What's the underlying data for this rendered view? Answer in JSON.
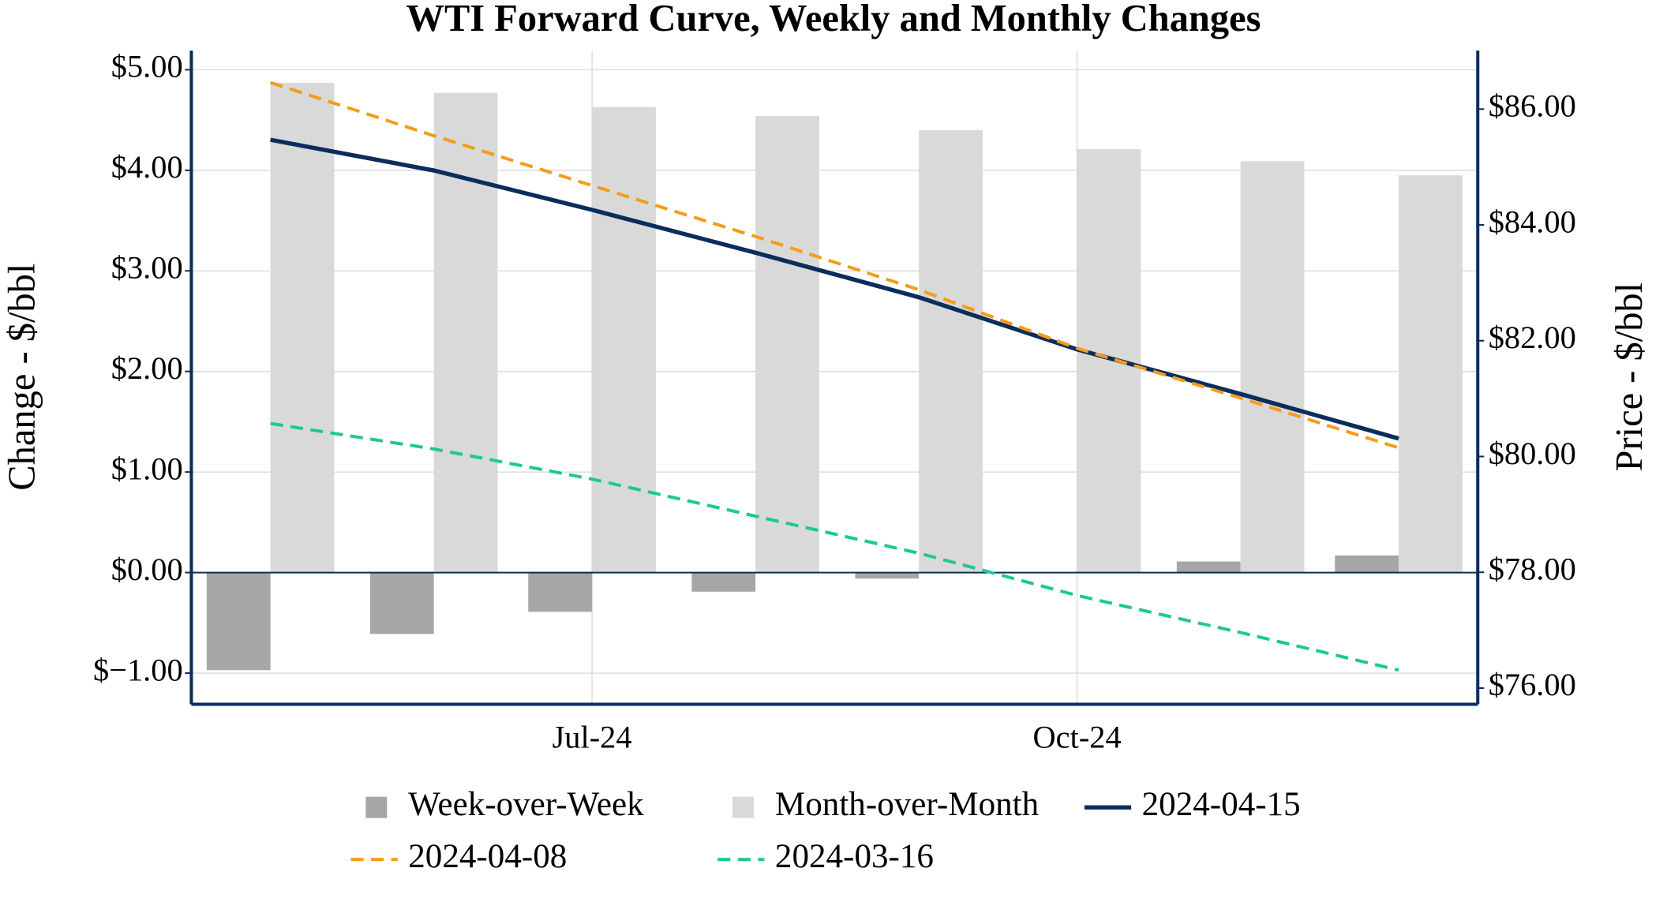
{
  "chart_data": {
    "type": "bar",
    "title": "WTI Forward Curve, Weekly and Monthly Changes",
    "y_label": "Change - $/bbl",
    "y2_label": "Price - $/bbl",
    "x": [
      "2024-05",
      "2024-06",
      "2024-07",
      "2024-08",
      "2024-09",
      "2024-10",
      "2024-11",
      "2024-12"
    ],
    "xlim": [
      "2024-04-16",
      "2024-12-16"
    ],
    "xticks": [
      {
        "value": "2024-07",
        "label": "Jul-24"
      },
      {
        "value": "2024-10",
        "label": "Oct-24"
      }
    ],
    "ylim": [
      -1.31,
      5.19
    ],
    "yticks": [
      {
        "value": -1,
        "label": "$−1.00"
      },
      {
        "value": 0,
        "label": "$0.00"
      },
      {
        "value": 1,
        "label": "$1.00"
      },
      {
        "value": 2,
        "label": "$2.00"
      },
      {
        "value": 3,
        "label": "$3.00"
      },
      {
        "value": 4,
        "label": "$4.00"
      },
      {
        "value": 5,
        "label": "$5.00"
      }
    ],
    "y2lim": [
      75.72,
      87.01
    ],
    "y2ticks": [
      {
        "value": 76,
        "label": "$76.00"
      },
      {
        "value": 78,
        "label": "$78.00"
      },
      {
        "value": 80,
        "label": "$80.00"
      },
      {
        "value": 82,
        "label": "$82.00"
      },
      {
        "value": 84,
        "label": "$84.00"
      },
      {
        "value": 86,
        "label": "$86.00"
      }
    ],
    "grid": true,
    "legend": "bottom",
    "series": [
      {
        "name": "Week-over-Week",
        "type": "bar",
        "color": "#a6a6a6",
        "values": [
          -0.97,
          -0.61,
          -0.39,
          -0.19,
          -0.06,
          0.0,
          0.11,
          0.17
        ]
      },
      {
        "name": "Month-over-Month",
        "type": "bar",
        "color": "#d9d9d9",
        "values": [
          4.87,
          4.77,
          4.63,
          4.54,
          4.4,
          4.21,
          4.09,
          3.95
        ]
      },
      {
        "name": "2024-04-15",
        "type": "line",
        "axis": "y2",
        "color": "#0b2d5c",
        "dashed": false,
        "values": [
          85.47,
          84.94,
          84.26,
          83.52,
          82.75,
          81.85,
          81.08,
          80.31
        ]
      },
      {
        "name": "2024-04-08",
        "type": "line",
        "axis": "y2",
        "color": "#f59c1a",
        "dashed": true,
        "values": [
          86.46,
          85.54,
          84.68,
          83.8,
          82.88,
          81.87,
          81.01,
          80.15
        ]
      },
      {
        "name": "2024-03-16",
        "type": "line",
        "axis": "y2",
        "color": "#1ec98f",
        "dashed": true,
        "values": [
          80.57,
          80.13,
          79.61,
          78.97,
          78.33,
          77.6,
          76.96,
          76.31
        ]
      }
    ]
  }
}
